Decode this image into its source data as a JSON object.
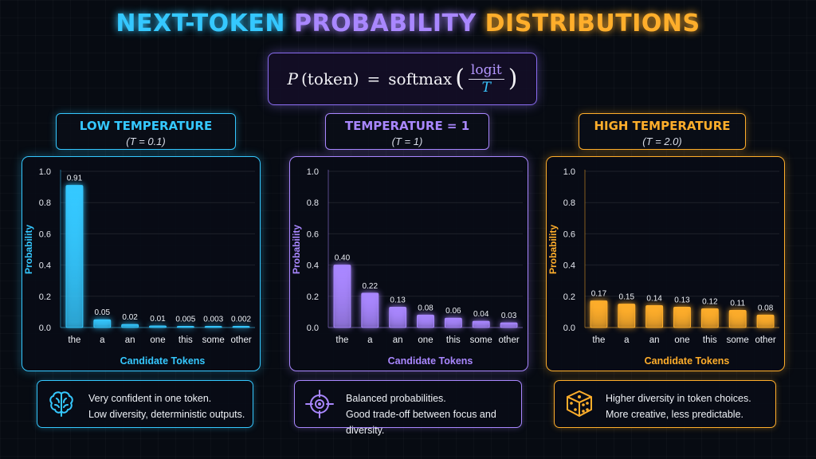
{
  "title": {
    "part1": "NEXT-TOKEN",
    "part2": "PROBABILITY",
    "part3": "DISTRIBUTIONS"
  },
  "formula": {
    "lhs_p": "P",
    "lhs_arg": "(token)",
    "eq": "=",
    "fn": "softmax",
    "num": "logit",
    "den": "T"
  },
  "colors": {
    "cyan": "#35c8ff",
    "purple": "#a987ff",
    "orange": "#ffae2b"
  },
  "panels": [
    {
      "heading": "LOW TEMPERATURE",
      "subheading": "(T = 0.1)",
      "note_line1": "Very confident in one token.",
      "note_line2": "Low diversity, deterministic outputs.",
      "icon": "brain-icon"
    },
    {
      "heading": "TEMPERATURE = 1",
      "subheading": "(T = 1)",
      "note_line1": "Balanced probabilities.",
      "note_line2": "Good trade-off between focus and diversity.",
      "icon": "target-icon"
    },
    {
      "heading": "HIGH TEMPERATURE",
      "subheading": "(T = 2.0)",
      "note_line1": "Higher diversity in token choices.",
      "note_line2": "More creative, less predictable.",
      "icon": "dice-icon"
    }
  ],
  "chart_data": [
    {
      "type": "bar",
      "xlabel": "Candidate Tokens",
      "ylabel": "Probability",
      "categories": [
        "the",
        "a",
        "an",
        "one",
        "this",
        "some",
        "other"
      ],
      "values": [
        0.91,
        0.05,
        0.02,
        0.01,
        0.005,
        0.003,
        0.002
      ],
      "value_labels": [
        "0.91",
        "0.05",
        "0.02",
        "0.01",
        "0.005",
        "0.003",
        "0.002"
      ],
      "ylim": [
        0,
        1.0
      ],
      "yticks": [
        "0.0",
        "0.2",
        "0.4",
        "0.6",
        "0.8",
        "1.0"
      ],
      "grid": true
    },
    {
      "type": "bar",
      "xlabel": "Candidate Tokens",
      "ylabel": "Probability",
      "categories": [
        "the",
        "a",
        "an",
        "one",
        "this",
        "some",
        "other"
      ],
      "values": [
        0.4,
        0.22,
        0.13,
        0.08,
        0.06,
        0.04,
        0.03
      ],
      "value_labels": [
        "0.40",
        "0.22",
        "0.13",
        "0.08",
        "0.06",
        "0.04",
        "0.03"
      ],
      "ylim": [
        0,
        1.0
      ],
      "yticks": [
        "0.0",
        "0.2",
        "0.4",
        "0.6",
        "0.8",
        "1.0"
      ],
      "grid": true
    },
    {
      "type": "bar",
      "xlabel": "Candidate Tokens",
      "ylabel": "Probability",
      "categories": [
        "the",
        "a",
        "an",
        "one",
        "this",
        "some",
        "other"
      ],
      "values": [
        0.17,
        0.15,
        0.14,
        0.13,
        0.12,
        0.11,
        0.08
      ],
      "value_labels": [
        "0.17",
        "0.15",
        "0.14",
        "0.13",
        "0.12",
        "0.11",
        "0.08"
      ],
      "ylim": [
        0,
        1.0
      ],
      "yticks": [
        "0.0",
        "0.2",
        "0.4",
        "0.6",
        "0.8",
        "1.0"
      ],
      "grid": true
    }
  ]
}
